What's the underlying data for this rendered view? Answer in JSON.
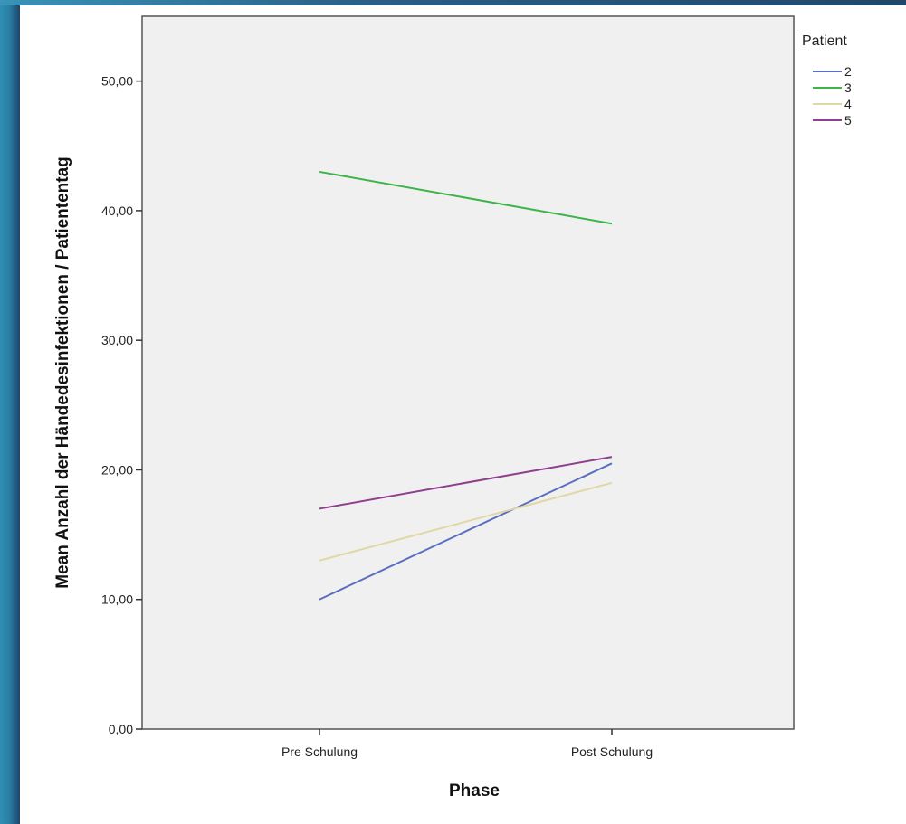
{
  "chart_data": {
    "type": "line",
    "title": "",
    "xlabel": "Phase",
    "ylabel": "Mean Anzahl der Händedesinfektionen / Patiententag",
    "categories": [
      "Pre Schulung",
      "Post Schulung"
    ],
    "ylim": [
      0,
      55
    ],
    "yticks": [
      0,
      10,
      20,
      30,
      40,
      50
    ],
    "ytick_labels": [
      "0,00",
      "10,00",
      "20,00",
      "30,00",
      "40,00",
      "50,00"
    ],
    "grid": false,
    "plot_background": "#f0f0f0",
    "legend": {
      "title": "Patient",
      "placement": "top-right-outside"
    },
    "series": [
      {
        "name": "2",
        "values": [
          10,
          20.5
        ],
        "color": "#5a6fc0"
      },
      {
        "name": "3",
        "values": [
          43,
          39
        ],
        "color": "#3cb44a"
      },
      {
        "name": "4",
        "values": [
          13,
          19
        ],
        "color": "#e0d8a4"
      },
      {
        "name": "5",
        "values": [
          17,
          21
        ],
        "color": "#8e3f8e"
      }
    ]
  }
}
